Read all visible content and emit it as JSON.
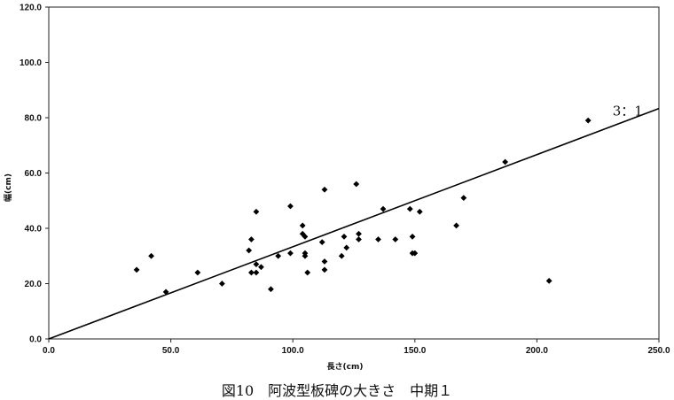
{
  "caption": "図10　阿波型板碑の大きさ　中期１",
  "chart_data": {
    "type": "scatter",
    "xlabel": "長さ(cm)",
    "ylabel": "幅(cm)",
    "xlim": [
      0,
      250
    ],
    "ylim": [
      0,
      120
    ],
    "x_ticks": [
      "0.0",
      "50.0",
      "100.0",
      "150.0",
      "200.0",
      "250.0"
    ],
    "y_ticks": [
      "0.0",
      "20.0",
      "40.0",
      "60.0",
      "80.0",
      "100.0",
      "120.0"
    ],
    "grid": false,
    "marker_color": "#000000",
    "reference_line": {
      "label": "3：1",
      "slope": 0.3333,
      "intercept": 0
    },
    "points": [
      [
        36,
        25
      ],
      [
        42,
        30
      ],
      [
        48,
        17
      ],
      [
        61,
        24
      ],
      [
        71,
        20
      ],
      [
        82,
        32
      ],
      [
        83,
        36
      ],
      [
        83,
        24
      ],
      [
        85,
        46
      ],
      [
        85,
        24
      ],
      [
        85,
        27
      ],
      [
        87,
        26
      ],
      [
        91,
        18
      ],
      [
        94,
        30
      ],
      [
        99,
        48
      ],
      [
        99,
        31
      ],
      [
        104,
        41
      ],
      [
        104,
        38
      ],
      [
        105,
        37
      ],
      [
        105,
        31
      ],
      [
        105,
        30
      ],
      [
        106,
        24
      ],
      [
        112,
        35
      ],
      [
        113,
        54
      ],
      [
        113,
        28
      ],
      [
        113,
        25
      ],
      [
        120,
        30
      ],
      [
        121,
        37
      ],
      [
        122,
        33
      ],
      [
        126,
        56
      ],
      [
        127,
        38
      ],
      [
        127,
        36
      ],
      [
        135,
        36
      ],
      [
        137,
        47
      ],
      [
        142,
        36
      ],
      [
        148,
        47
      ],
      [
        149,
        37
      ],
      [
        149,
        31
      ],
      [
        150,
        31
      ],
      [
        152,
        46
      ],
      [
        167,
        41
      ],
      [
        170,
        51
      ],
      [
        187,
        64
      ],
      [
        205,
        21
      ],
      [
        221,
        79
      ]
    ]
  }
}
